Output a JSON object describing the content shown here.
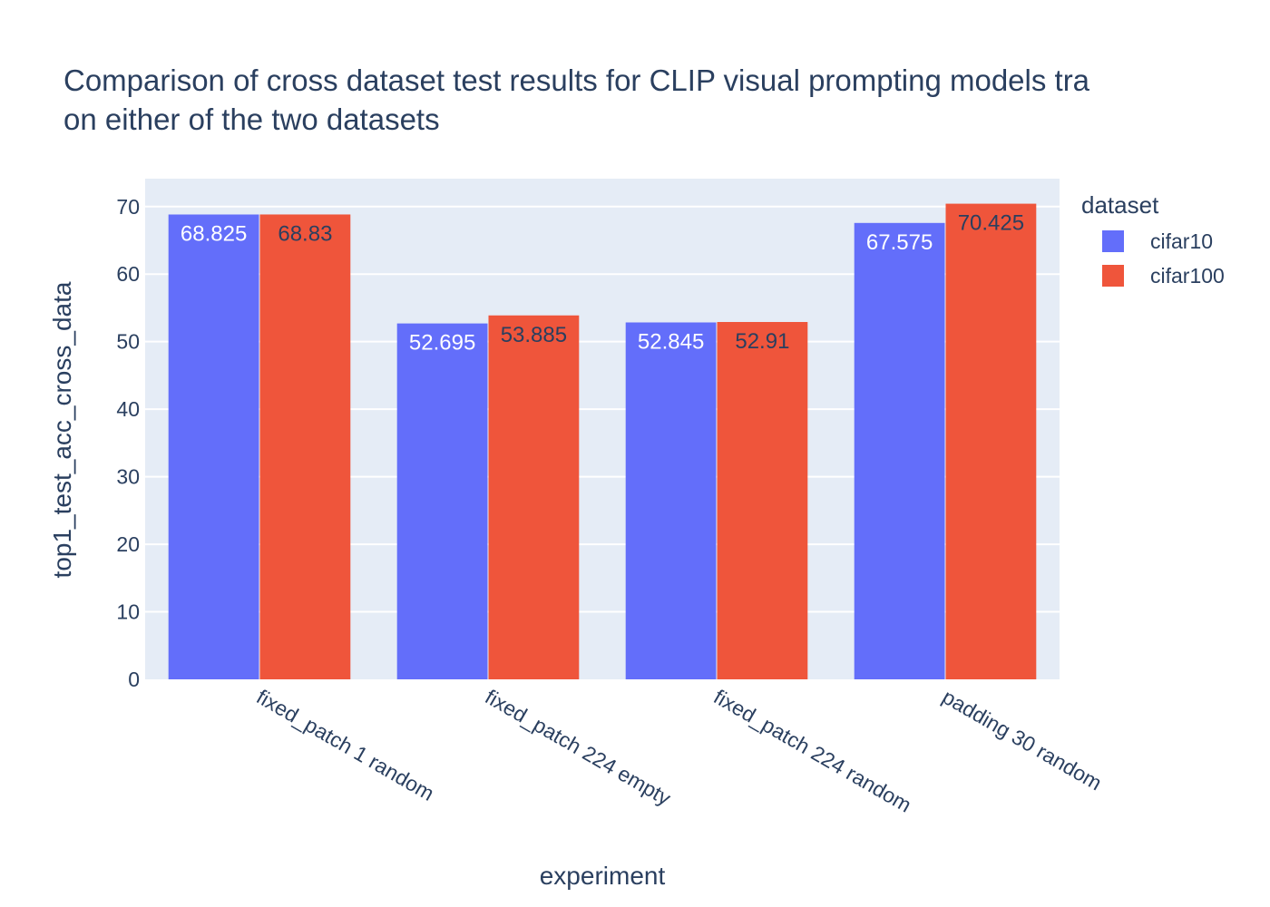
{
  "chart_data": {
    "type": "bar",
    "title_lines": [
      "Comparison of cross dataset test results for CLIP visual prompting models tra",
      "on either of the two datasets"
    ],
    "xlabel": "experiment",
    "ylabel": "top1_test_acc_cross_data",
    "categories": [
      "fixed_patch 1 random",
      "fixed_patch 224 empty",
      "fixed_patch 224 random",
      "padding 30 random"
    ],
    "series": [
      {
        "name": "cifar10",
        "color": "#636efa",
        "label_color": "#ffffff",
        "values": [
          68.825,
          52.695,
          52.845,
          67.575
        ],
        "labels": [
          "68.825",
          "52.695",
          "52.845",
          "67.575"
        ]
      },
      {
        "name": "cifar100",
        "color": "#ef553b",
        "label_color": "#2a3f5f",
        "values": [
          68.83,
          53.885,
          52.91,
          70.425
        ],
        "labels": [
          "68.83",
          "53.885",
          "52.91",
          "70.425"
        ]
      }
    ],
    "ylim": [
      0,
      74.13
    ],
    "yticks": [
      0,
      10,
      20,
      30,
      40,
      50,
      60,
      70
    ],
    "grid": true,
    "legend": {
      "title": "dataset",
      "position": "right"
    },
    "colors": {
      "plot_background": "#e5ecf6",
      "gridline": "#ffffff",
      "text": "#2a3f5f"
    }
  }
}
